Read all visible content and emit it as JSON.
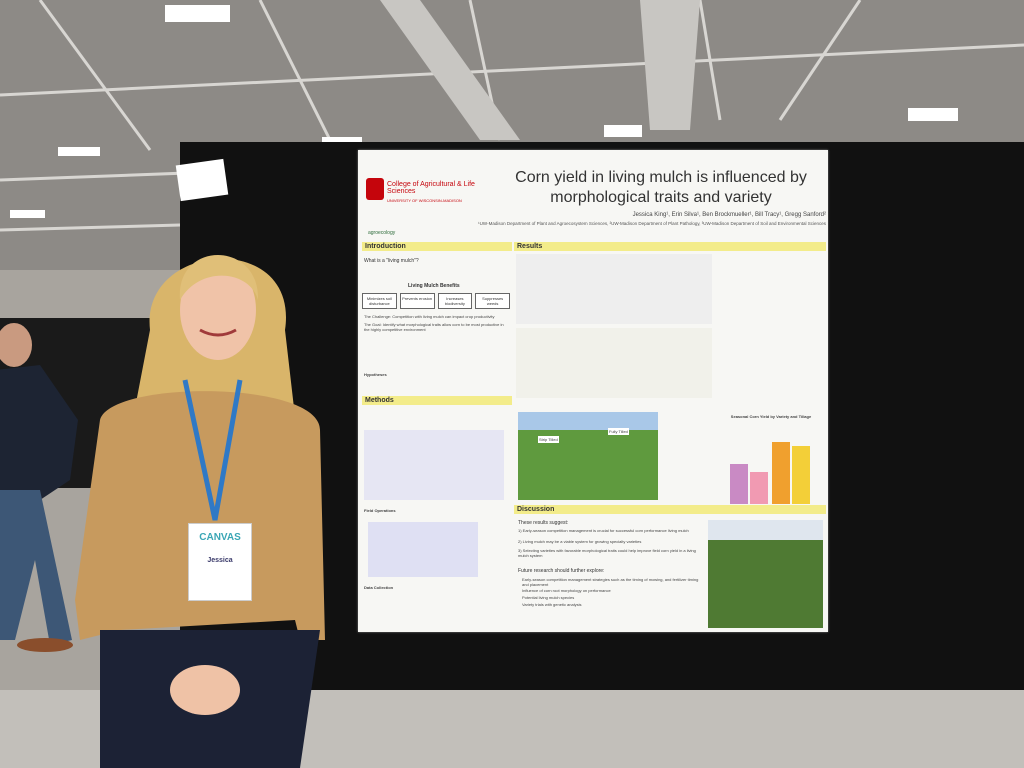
{
  "poster": {
    "title": "Corn yield in living mulch is influenced by morphological traits and variety",
    "logo": {
      "college": "College of Agricultural & Life Sciences",
      "university": "UNIVERSITY OF WISCONSIN-MADISON",
      "program": "agroecology"
    },
    "authors": "Jessica King¹, Erin Silva¹, Ben Brockmueller¹, Bill Tracy¹, Gregg Sanford²",
    "affiliations": "¹UW-Madison Department of Plant and Agroecosystem Sciences, ²UW-Madison Department of Plant Pathology, ³UW-Madison Department of Soil and Environmental Sciences",
    "sections": {
      "introduction": "Introduction",
      "results": "Results",
      "methods": "Methods",
      "discussion": "Discussion"
    },
    "introduction": {
      "question": "What is a \"living mulch\"?",
      "benefits_title": "Living Mulch Benefits",
      "benefits": [
        "Minimizes soil disturbance",
        "Prevents erosion",
        "Increases biodiversity",
        "Suppresses weeds"
      ],
      "challenge": "The Challenge: Competition with living mulch can impact crop productivity",
      "goal": "The Goal: Identify what morphological traits allow corn to be most productive in the highly competitive environment",
      "hypotheses": "Hypotheses"
    },
    "methods": {
      "field_operations": "Field Operations",
      "data_collection": "Data Collection"
    },
    "results": {
      "chart_title": "Seasonal Corn Yield by Variety and Tillage",
      "photo_labels": [
        "Strip Tilled",
        "Fully Tilled"
      ]
    },
    "discussion": {
      "intro": "These results suggest:",
      "points": [
        "1) Early-season competition management is crucial for successful corn performance living mulch",
        "2) Living mulch may be a viable system for growing specialty varieties",
        "3) Selecting varieties with favorable morphological traits could help improve field corn yield in a living mulch system"
      ],
      "future": "Future research should further explore:",
      "future_points": [
        "Early-season competition management strategies such as the timing of mowing, and fertilizer timing and placement",
        "Influence of corn root morphology on performance",
        "Potential living mulch species",
        "Variety trials with genetic analysis"
      ]
    }
  },
  "badge": {
    "event": "CANVAS",
    "name": "Jessica"
  }
}
